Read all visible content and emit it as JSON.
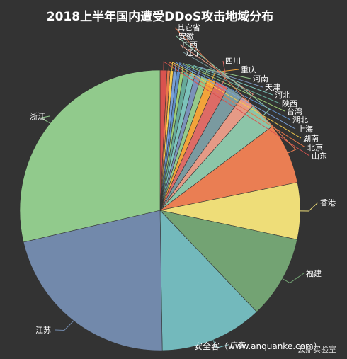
{
  "chart_data": {
    "type": "pie",
    "title": "2018上半年国内遭受DDoS攻击地域分布",
    "start_angle_deg": 0,
    "direction": "clockwise",
    "series": [
      {
        "name": "",
        "slices": [
          {
            "label": "山东",
            "value": 0.8,
            "color": "#d9534f"
          },
          {
            "label": "北京",
            "value": 0.35,
            "color": "#e8794a"
          },
          {
            "label": "湖南",
            "value": 0.35,
            "color": "#f5c94c"
          },
          {
            "label": "上海",
            "value": 0.4,
            "color": "#7aa0d6"
          },
          {
            "label": "湖北",
            "value": 0.4,
            "color": "#5f8fc9"
          },
          {
            "label": "台湾",
            "value": 0.4,
            "color": "#9ccc76"
          },
          {
            "label": "陕西",
            "value": 0.6,
            "color": "#66aa99"
          },
          {
            "label": "河北",
            "value": 0.7,
            "color": "#7cc3bb"
          },
          {
            "label": "天津",
            "value": 0.7,
            "color": "#7b92ba"
          },
          {
            "label": "河南",
            "value": 0.8,
            "color": "#95c98a"
          },
          {
            "label": "重庆",
            "value": 1.0,
            "color": "#f2a33a"
          },
          {
            "label": "四川",
            "value": 1.5,
            "color": "#dd6b66"
          },
          {
            "label": "辽宁",
            "value": 1.9,
            "color": "#7a9aa0"
          },
          {
            "label": "广西",
            "value": 1.6,
            "color": "#e59a86"
          },
          {
            "label": "安徽",
            "value": 3.2,
            "color": "#8cc5a8"
          },
          {
            "label": "其它省",
            "value": 7.0,
            "color": "#ea7e53"
          },
          {
            "label": "香港",
            "value": 6.5,
            "color": "#eedd78"
          },
          {
            "label": "福建",
            "value": 9.5,
            "color": "#73a373"
          },
          {
            "label": "广东",
            "value": 11.8,
            "color": "#73b9bc"
          },
          {
            "label": "江苏",
            "value": 21.5,
            "color": "#7289ab"
          },
          {
            "label": "浙江",
            "value": 28.5,
            "color": "#91ca8c"
          }
        ]
      }
    ],
    "labels": {
      "浙江": {
        "tx": 42,
        "ty": 168,
        "anchor": "start"
      },
      "江苏": {
        "tx": 50,
        "ty": 470,
        "anchor": "start"
      },
      "福建": {
        "tx": 432,
        "ty": 390,
        "anchor": "start"
      },
      "香港": {
        "tx": 452,
        "ty": 290,
        "anchor": "start"
      },
      "山东": {
        "tx": 440,
        "ty": 224,
        "anchor": "start"
      },
      "北京": {
        "tx": 434,
        "ty": 212,
        "anchor": "start"
      },
      "湖南": {
        "tx": 428,
        "ty": 199,
        "anchor": "start"
      },
      "上海": {
        "tx": 420,
        "ty": 186,
        "anchor": "start"
      },
      "湖北": {
        "tx": 413,
        "ty": 173,
        "anchor": "start"
      },
      "台湾": {
        "tx": 405,
        "ty": 161,
        "anchor": "start"
      },
      "陕西": {
        "tx": 398,
        "ty": 150,
        "anchor": "start"
      },
      "河北": {
        "tx": 388,
        "ty": 138,
        "anchor": "start"
      },
      "天津": {
        "tx": 374,
        "ty": 127,
        "anchor": "start"
      },
      "河南": {
        "tx": 357,
        "ty": 115,
        "anchor": "start"
      },
      "重庆": {
        "tx": 340,
        "ty": 102,
        "anchor": "start"
      },
      "四川": {
        "tx": 318,
        "ty": 90,
        "anchor": "start"
      },
      "辽宁": {
        "tx": 262,
        "ty": 78,
        "anchor": "start"
      },
      "广西": {
        "tx": 257,
        "ty": 67,
        "anchor": "start"
      },
      "安徽": {
        "tx": 252,
        "ty": 55,
        "anchor": "start"
      },
      "其它省": {
        "tx": 250,
        "ty": 43,
        "anchor": "start"
      },
      "广东": {
        "tx": 325,
        "ty": 491,
        "anchor": "start"
      }
    }
  },
  "watermark": {
    "main": "安全客（www.anquanke.com）",
    "lab": "云鼎实验室"
  }
}
